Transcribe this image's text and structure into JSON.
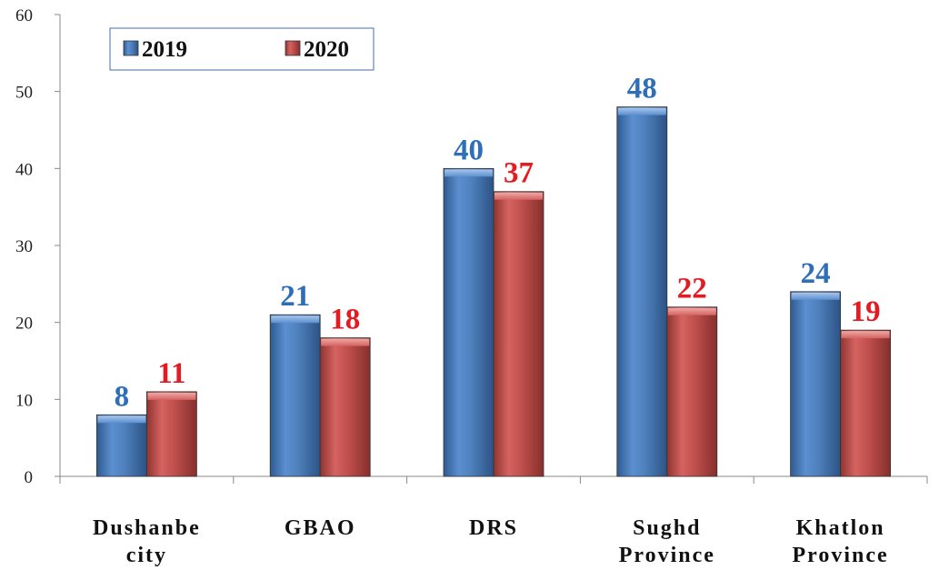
{
  "chart_data": {
    "type": "bar",
    "title": "",
    "xlabel": "",
    "ylabel": "",
    "ylim": [
      0,
      60
    ],
    "yticks": [
      0,
      10,
      20,
      30,
      40,
      50,
      60
    ],
    "categories": [
      [
        "Dushanbe",
        "city"
      ],
      [
        "GBAO"
      ],
      [
        "DRS"
      ],
      [
        "Sughd",
        "Province"
      ],
      [
        "Khatlon",
        "Province"
      ]
    ],
    "series": [
      {
        "name": "2019",
        "color": "#4f81bd",
        "label_color": "#2e6fb8",
        "values": [
          8,
          21,
          40,
          48,
          24
        ]
      },
      {
        "name": "2020",
        "color": "#c0504d",
        "label_color": "#e31b23",
        "values": [
          11,
          18,
          37,
          22,
          19
        ]
      }
    ],
    "legend_position": "top-left",
    "grid": false
  }
}
